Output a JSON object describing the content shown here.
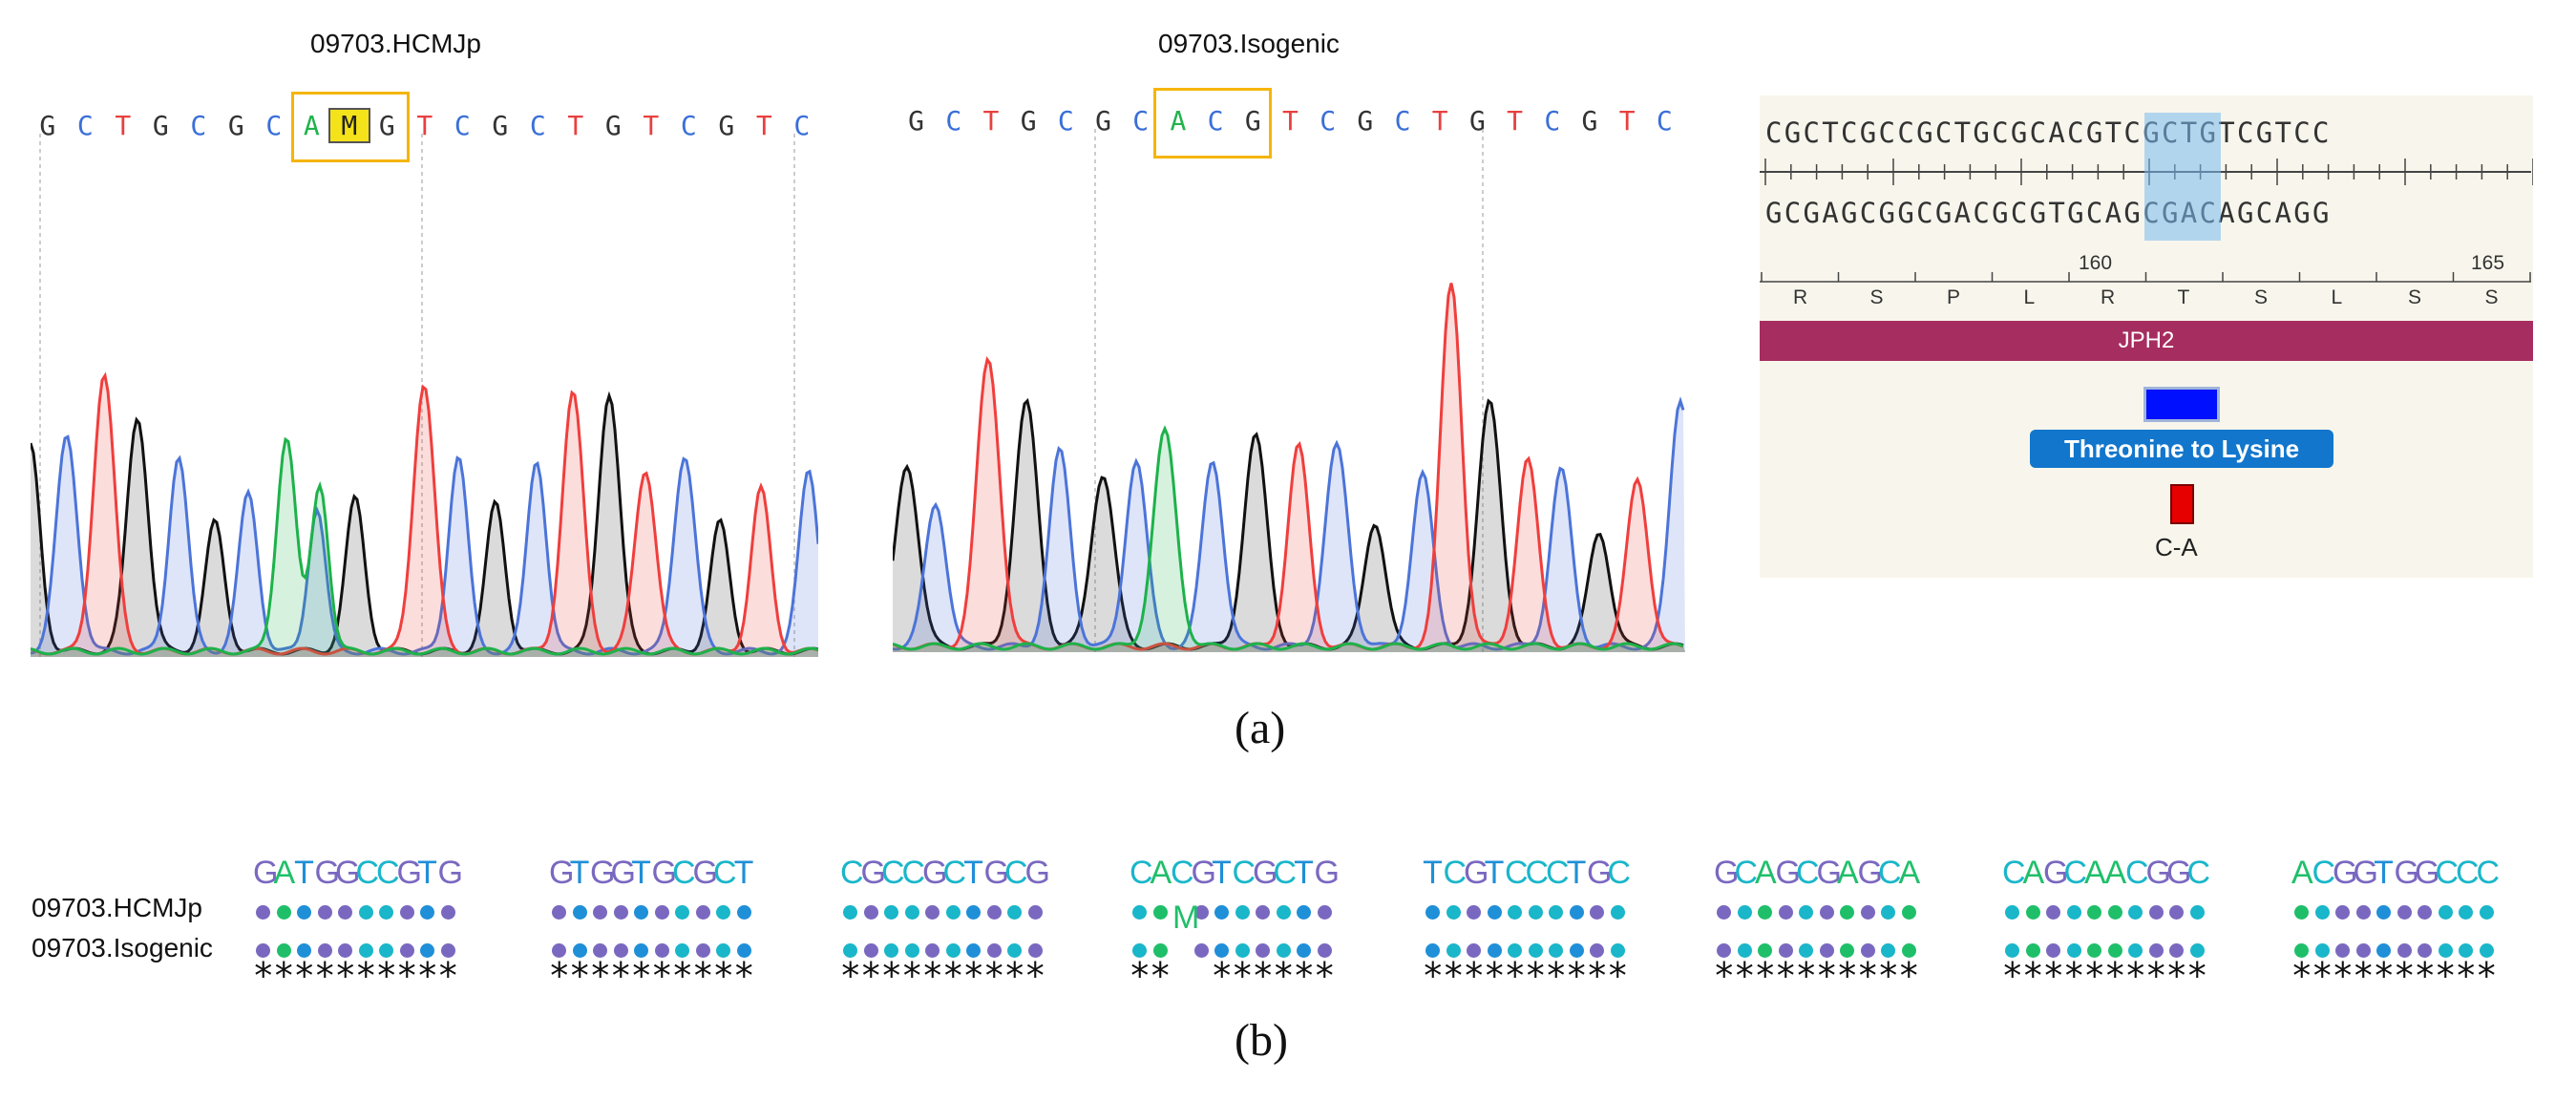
{
  "panel_a": {
    "left_title": "09703.HCMJp",
    "right_title": "09703.Isogenic",
    "left_seq": [
      "G",
      "C",
      "T",
      "G",
      "C",
      "G",
      "C",
      "A",
      "M",
      "G",
      "T",
      "C",
      "G",
      "C",
      "T",
      "G",
      "T",
      "C",
      "G",
      "T",
      "C"
    ],
    "right_seq": [
      "G",
      "C",
      "T",
      "G",
      "C",
      "G",
      "C",
      "A",
      "C",
      "G",
      "T",
      "C",
      "G",
      "C",
      "T",
      "G",
      "T",
      "C",
      "G",
      "T",
      "C"
    ],
    "snapgene": {
      "top_strand": "CGCTCGCCGCTGCGCACGTCGCTGTCGTCC",
      "bottom_strand": "GCGAGCGGCGACGCGTGCAGCGACAGCAGG",
      "position_labels": [
        "160",
        "165"
      ],
      "amino_acids": [
        "R",
        "S",
        "P",
        "L",
        "R",
        "T",
        "S",
        "L",
        "S",
        "S"
      ],
      "gene_label": "JPH2",
      "feature_label": "Threonine to Lysine",
      "mutation_label": "C-A"
    },
    "caption": "(a)"
  },
  "panel_b": {
    "row_labels": [
      "09703.HCMJp",
      "09703.Isogenic"
    ],
    "blocks": [
      {
        "seq": "GATGGCCGTG",
        "stars": "**********"
      },
      {
        "seq": "GTGGTGCGCT",
        "stars": "**********"
      },
      {
        "seq": "CGCCGCTGCG",
        "stars": "**********"
      },
      {
        "seq": "CACGTCGCTG",
        "stars": "**  ******",
        "mismatch_base": "M"
      },
      {
        "seq": "TCGTCCCTGC",
        "stars": "**********"
      },
      {
        "seq": "GCAGCGAGCA",
        "stars": "**********"
      },
      {
        "seq": "CAGCAACGGC",
        "stars": "**********"
      },
      {
        "seq": "ACGGTGGCCC",
        "stars": "**********"
      }
    ],
    "caption": "(b)"
  },
  "colors": {
    "A": "#22b24c",
    "C": "#3a6fd8",
    "G": "#333333",
    "T": "#e8403f",
    "align_A": "#1fbf6a",
    "align_C": "#1ab6c9",
    "align_G": "#7a68c0",
    "align_T": "#1f8fd8"
  }
}
